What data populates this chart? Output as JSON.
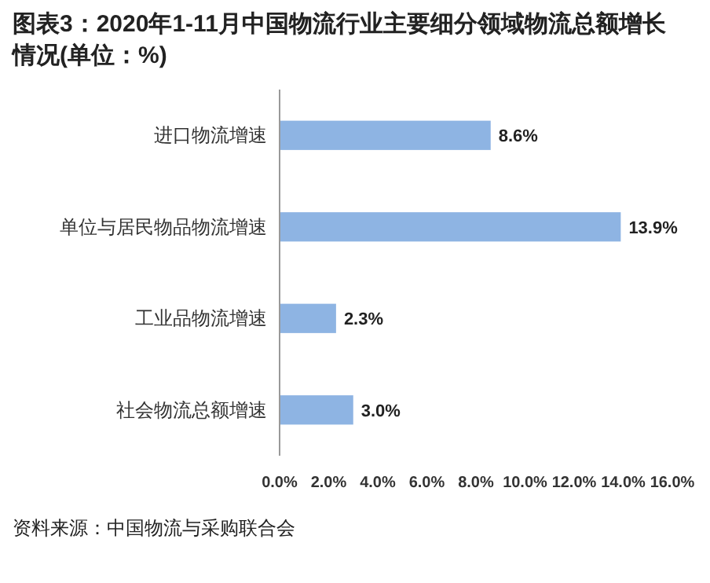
{
  "chart_data": {
    "type": "bar",
    "orientation": "horizontal",
    "title": "图表3：2020年1-11月中国物流行业主要细分领域物流总额增长情况(单位：%)",
    "categories": [
      "进口物流增速",
      "单位与居民物品物流增速",
      "工业品物流增速",
      "社会物流总额增速"
    ],
    "values": [
      8.6,
      13.9,
      2.3,
      3.0
    ],
    "value_labels": [
      "8.6%",
      "13.9%",
      "2.3%",
      "3.0%"
    ],
    "color": "#8eb4e3",
    "xlim": [
      0,
      16
    ],
    "xticks": [
      {
        "value": 0,
        "label": "0.0%"
      },
      {
        "value": 2,
        "label": "2.0%"
      },
      {
        "value": 4,
        "label": "4.0%"
      },
      {
        "value": 6,
        "label": "6.0%"
      },
      {
        "value": 8,
        "label": "8.0%"
      },
      {
        "value": 10,
        "label": "10.0%"
      },
      {
        "value": 12,
        "label": "12.0%"
      },
      {
        "value": 14,
        "label": "14.0%"
      },
      {
        "value": 16,
        "label": "16.0%"
      }
    ],
    "annotations": [
      "资料来源：中国物流与采购联合会"
    ]
  }
}
